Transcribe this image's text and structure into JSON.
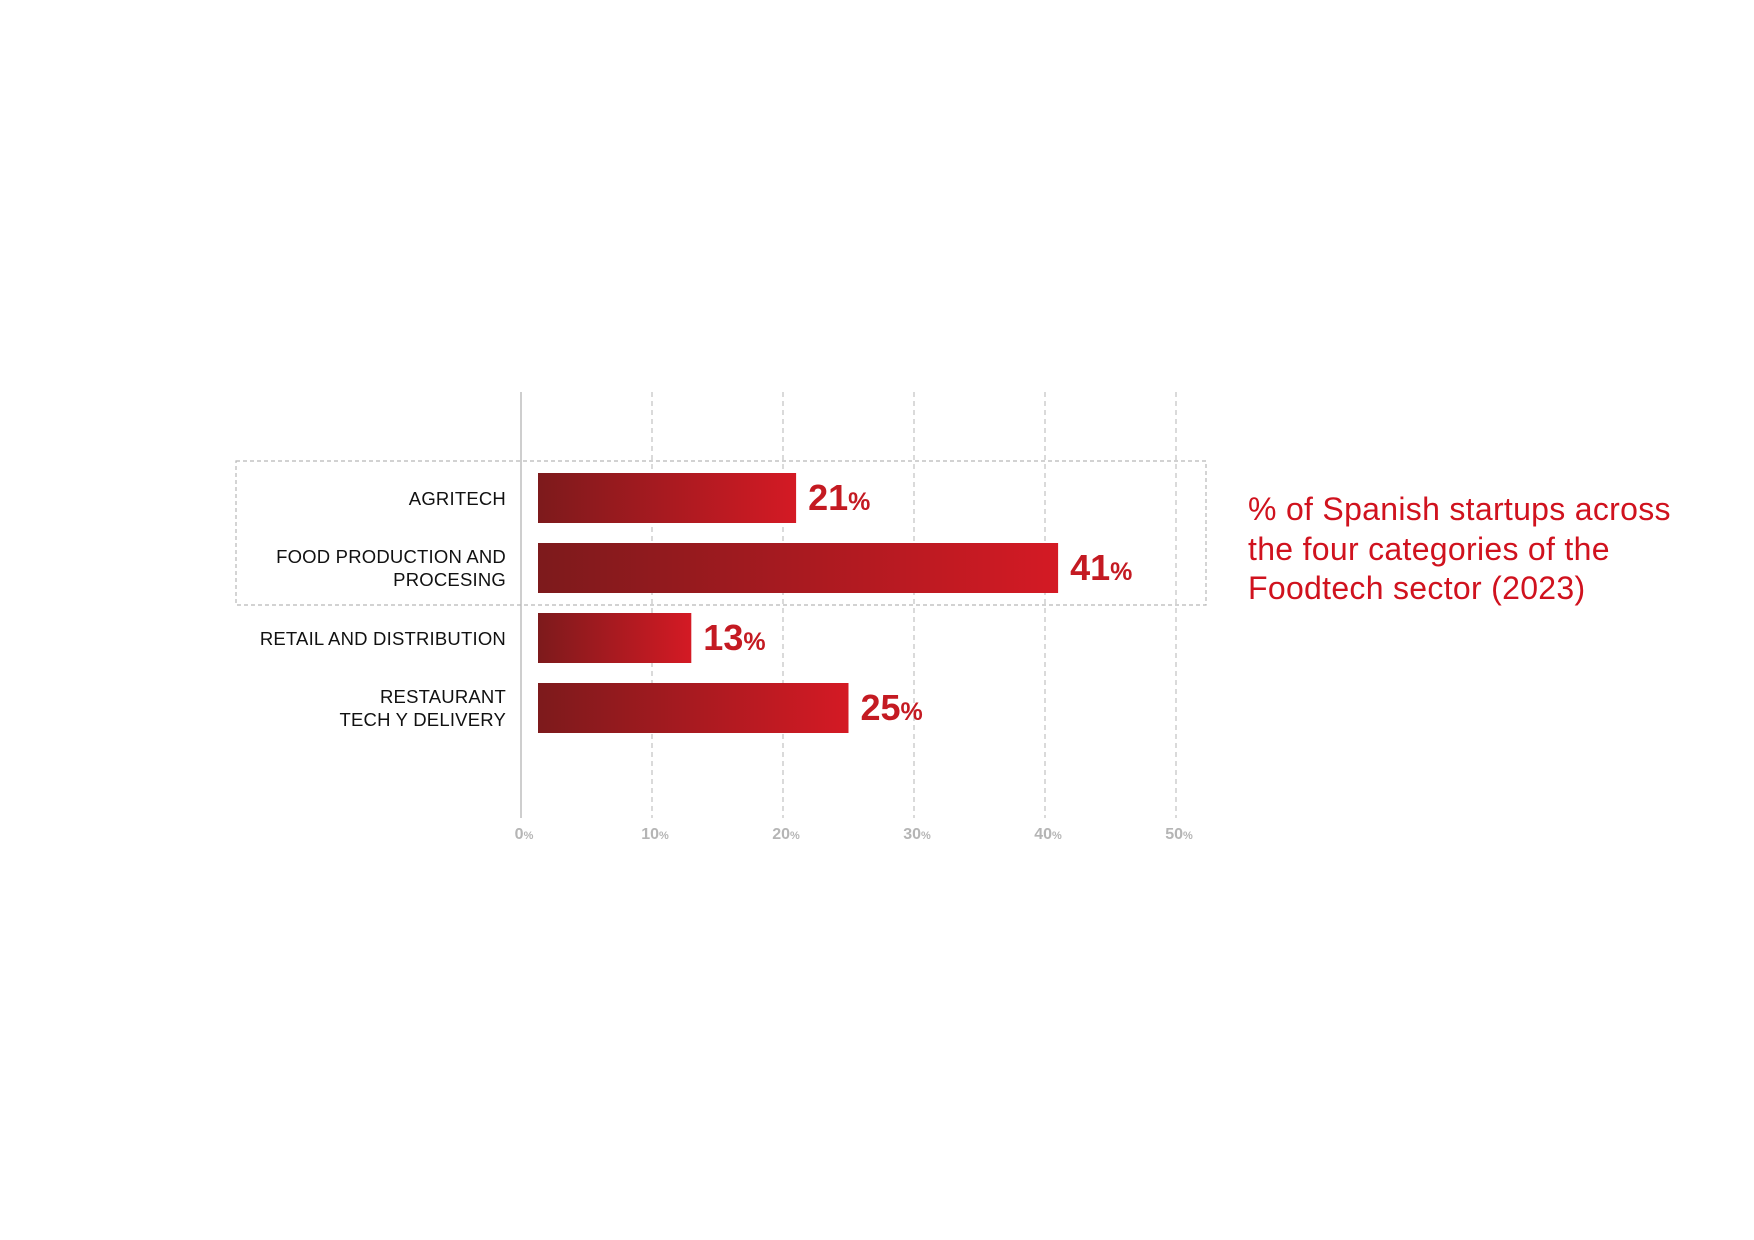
{
  "chart_data": {
    "type": "bar",
    "orientation": "horizontal",
    "title": "% of Spanish startups across the four categories of the Foodtech sector (2023)",
    "categories": [
      "AGRITECH",
      "FOOD PRODUCTION AND\nPROCESING",
      "RETAIL AND DISTRIBUTION",
      "RESTAURANT\nTECH Y DELIVERY"
    ],
    "values": [
      21,
      41,
      13,
      25
    ],
    "value_suffix": "%",
    "xlim": [
      0,
      50
    ],
    "xticks": [
      "0",
      "10",
      "20",
      "30",
      "40",
      "50"
    ],
    "xtick_suffix": "%",
    "grid": "vertical dashed",
    "highlighted_group": [
      "AGRITECH",
      "FOOD PRODUCTION AND\nPROCESING"
    ],
    "colors": {
      "bar_dark": "#7d1a1c",
      "bar_light": "#d41a24",
      "value_text": "#c41a22",
      "title": "#d0121e",
      "grid": "#bbbbbb",
      "tick_text": "#b5b5b5"
    }
  }
}
